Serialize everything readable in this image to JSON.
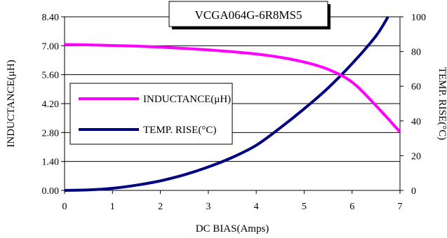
{
  "chart_data": {
    "type": "line",
    "title": "VCGA064G-6R8MS5",
    "xlabel": "DC BIAS(Amps)",
    "ylabel_left": "INDUCTANCE(μH)",
    "ylabel_right": "TEMP. RISE(°C)",
    "xlim": [
      0,
      7
    ],
    "ylim_left": [
      0,
      8.4
    ],
    "ylim_right": [
      0,
      100
    ],
    "x_ticks": [
      "0",
      "1",
      "2",
      "3",
      "4",
      "5",
      "6",
      "7"
    ],
    "y_left_ticks": [
      "0.00",
      "1.40",
      "2.80",
      "4.20",
      "5.60",
      "7.00",
      "8.40"
    ],
    "y_right_ticks": [
      "0",
      "20",
      "40",
      "60",
      "80",
      "100"
    ],
    "grid": "horizontal",
    "legend_position": "left, inside plot",
    "series": [
      {
        "name": "INDUCTANCE(μH)",
        "axis": "left",
        "color": "#ff00ff",
        "x": [
          0,
          0.5,
          1,
          1.5,
          2,
          2.5,
          3,
          3.5,
          4,
          4.5,
          5,
          5.5,
          6,
          6.5,
          7
        ],
        "y": [
          7.06,
          7.04,
          7.01,
          6.98,
          6.93,
          6.87,
          6.8,
          6.71,
          6.6,
          6.44,
          6.21,
          5.86,
          5.24,
          4.1,
          2.83
        ]
      },
      {
        "name": "TEMP. RISE(°C)",
        "axis": "right",
        "color": "#000080",
        "x": [
          0,
          0.5,
          1,
          1.5,
          2,
          2.5,
          3,
          3.5,
          4,
          4.5,
          5,
          5.5,
          6,
          6.5,
          6.75
        ],
        "y": [
          0,
          0.3,
          1.2,
          3,
          5.5,
          9,
          13.5,
          19,
          26,
          36,
          47,
          59,
          73,
          89,
          100
        ]
      }
    ]
  }
}
